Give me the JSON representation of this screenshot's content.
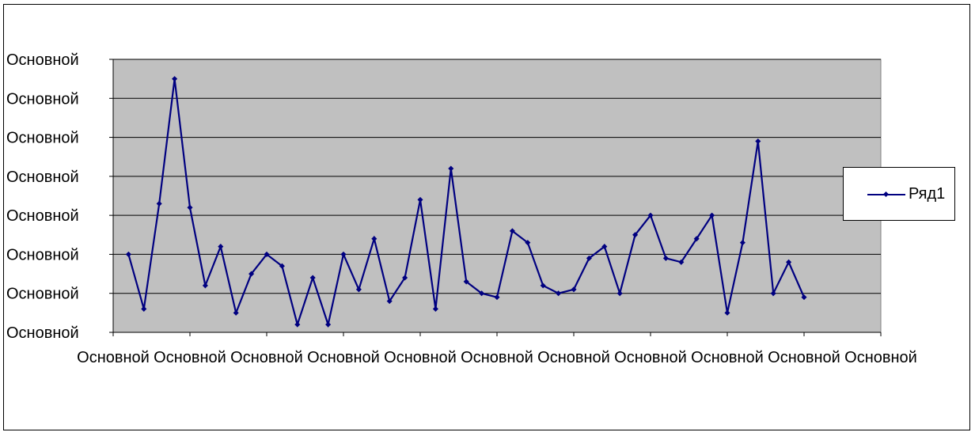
{
  "chart_data": {
    "type": "line",
    "title": "",
    "xlabel": "",
    "ylabel": "",
    "y_tick_labels": [
      "Основной",
      "Основной",
      "Основной",
      "Основной",
      "Основной",
      "Основной",
      "Основной",
      "Основной"
    ],
    "x_tick_labels": [
      "Основной",
      "Основной",
      "Основной",
      "Основной",
      "Основной",
      "Основной",
      "Основной",
      "Основной",
      "Основной",
      "Основной",
      "Основной"
    ],
    "ylim": [
      0,
      7
    ],
    "xlim": [
      0,
      50
    ],
    "grid": true,
    "legend_position": "right",
    "plot_background": "#c0c0c0",
    "series": [
      {
        "name": "Ряд1",
        "color": "#000080",
        "values": [
          2.0,
          0.6,
          3.3,
          6.5,
          3.2,
          1.2,
          2.2,
          0.5,
          1.5,
          2.0,
          1.7,
          0.2,
          1.4,
          0.2,
          2.0,
          1.1,
          2.4,
          0.8,
          1.4,
          3.4,
          0.6,
          4.2,
          1.3,
          1.0,
          0.9,
          2.6,
          2.3,
          1.2,
          1.0,
          1.1,
          1.9,
          2.2,
          1.0,
          2.5,
          3.0,
          1.9,
          1.8,
          2.4,
          3.0,
          0.5,
          2.3,
          4.9,
          1.0,
          1.8,
          0.9
        ]
      }
    ]
  },
  "legend": {
    "label": "Ряд1"
  }
}
